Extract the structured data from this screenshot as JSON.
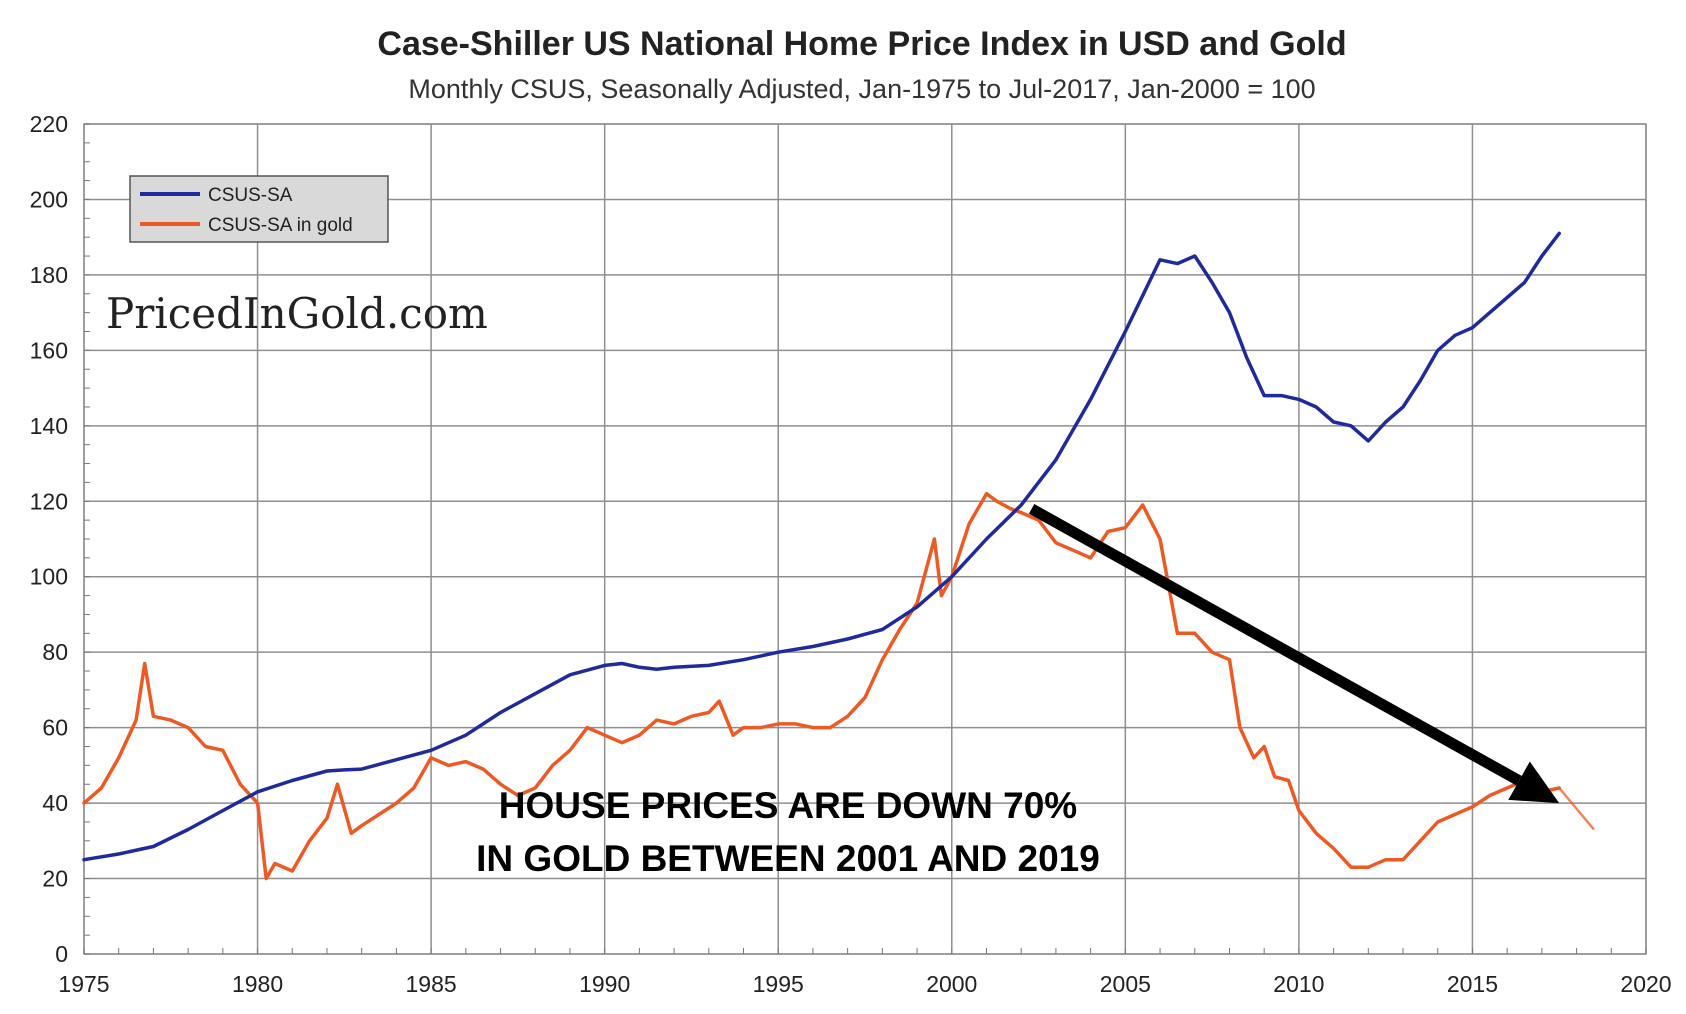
{
  "title": "Case-Shiller US National Home Price Index in USD and Gold",
  "subtitle": "Monthly CSUS, Seasonally Adjusted, Jan-1975 to Jul-2017, Jan-2000 = 100",
  "watermark": "PricedInGold.com",
  "annotation": {
    "line1": "HOUSE PRICES ARE DOWN 70%",
    "line2": "IN GOLD BETWEEN 2001 AND 2019",
    "arrow_from": [
      2002.3,
      118
    ],
    "arrow_to": [
      2017.5,
      40
    ]
  },
  "colors": {
    "usd": "#1f2a9c",
    "gold": "#ee5a24",
    "grid": "#8f8f8f",
    "arrow": "#000000",
    "legend_bg": "#d9d9d9"
  },
  "chart_data": {
    "type": "line",
    "title": "Case-Shiller US National Home Price Index in USD and Gold",
    "subtitle": "Monthly CSUS, Seasonally Adjusted, Jan-1975 to Jul-2017, Jan-2000 = 100",
    "xlabel": "",
    "ylabel": "",
    "xlim": [
      1975,
      2020
    ],
    "ylim": [
      0,
      220
    ],
    "x_ticks": [
      "1975",
      "1980",
      "1985",
      "1990",
      "1995",
      "2000",
      "2005",
      "2010",
      "2015",
      "2020"
    ],
    "y_ticks": [
      "0",
      "20",
      "40",
      "60",
      "80",
      "100",
      "120",
      "140",
      "160",
      "180",
      "200",
      "220"
    ],
    "grid": true,
    "legend_position": "top-left",
    "series": [
      {
        "name": "CSUS-SA",
        "x": [
          1975,
          1976,
          1977,
          1978,
          1979,
          1980,
          1981,
          1982,
          1982.5,
          1983,
          1984,
          1985,
          1986,
          1987,
          1988,
          1989,
          1990,
          1990.5,
          1991,
          1991.5,
          1992,
          1993,
          1994,
          1995,
          1996,
          1997,
          1998,
          1999,
          2000,
          2001,
          2002,
          2003,
          2004,
          2005,
          2006,
          2006.5,
          2007,
          2007.5,
          2008,
          2008.5,
          2009,
          2009.5,
          2010,
          2010.5,
          2011,
          2011.5,
          2012,
          2012.5,
          2013,
          2013.5,
          2014,
          2014.5,
          2015,
          2015.5,
          2016,
          2016.5,
          2017,
          2017.5
        ],
        "values": [
          25,
          26.5,
          28.5,
          33,
          38,
          43,
          46,
          48.5,
          48.8,
          49,
          51.5,
          54,
          58,
          64,
          69,
          74,
          76.5,
          77,
          76,
          75.5,
          76,
          76.5,
          78,
          80,
          81.5,
          83.5,
          86,
          92,
          100,
          110,
          119,
          131,
          147,
          165,
          184,
          183,
          185,
          178,
          170,
          158,
          148,
          148,
          147,
          145,
          141,
          140,
          136,
          141,
          145,
          152,
          160,
          164,
          166,
          170,
          174,
          178,
          185,
          191
        ]
      },
      {
        "name": "CSUS-SA in gold",
        "x": [
          1975,
          1975.5,
          1976,
          1976.5,
          1976.75,
          1977,
          1977.5,
          1978,
          1978.5,
          1979,
          1979.5,
          1980,
          1980.25,
          1980.5,
          1981,
          1981.5,
          1982,
          1982.3,
          1982.7,
          1983,
          1983.5,
          1984,
          1984.5,
          1985,
          1985.5,
          1986,
          1986.5,
          1987,
          1987.5,
          1988,
          1988.5,
          1989,
          1989.5,
          1990,
          1990.5,
          1991,
          1991.5,
          1992,
          1992.5,
          1993,
          1993.3,
          1993.7,
          1994,
          1994.5,
          1995,
          1995.5,
          1996,
          1996.5,
          1997,
          1997.5,
          1998,
          1998.5,
          1999,
          1999.5,
          1999.7,
          2000,
          2000.5,
          2001,
          2001.3,
          2001.7,
          2002,
          2002.5,
          2003,
          2003.5,
          2004,
          2004.5,
          2005,
          2005.5,
          2006,
          2006.5,
          2007,
          2007.5,
          2008,
          2008.3,
          2008.7,
          2009,
          2009.3,
          2009.7,
          2010,
          2010.5,
          2011,
          2011.5,
          2012,
          2012.5,
          2013,
          2013.5,
          2014,
          2014.5,
          2015,
          2015.5,
          2016,
          2016.5,
          2017,
          2017.5
        ],
        "values": [
          40,
          44,
          52,
          62,
          77,
          63,
          62,
          60,
          55,
          54,
          45,
          40,
          20,
          24,
          22,
          30,
          36,
          45,
          32,
          34,
          37,
          40,
          44,
          52,
          50,
          51,
          49,
          45,
          42,
          44,
          50,
          54,
          60,
          58,
          56,
          58,
          62,
          61,
          63,
          64,
          67,
          58,
          60,
          60,
          61,
          61,
          60,
          60,
          63,
          68,
          78,
          86,
          93,
          110,
          95,
          100,
          114,
          122,
          120,
          118,
          117,
          115,
          109,
          107,
          105,
          112,
          113,
          119,
          110,
          85,
          85,
          80,
          78,
          60,
          52,
          55,
          47,
          46,
          38,
          32,
          28,
          23,
          23,
          25,
          25,
          30,
          35,
          37,
          39,
          42,
          44,
          46,
          43,
          44
        ]
      }
    ]
  }
}
